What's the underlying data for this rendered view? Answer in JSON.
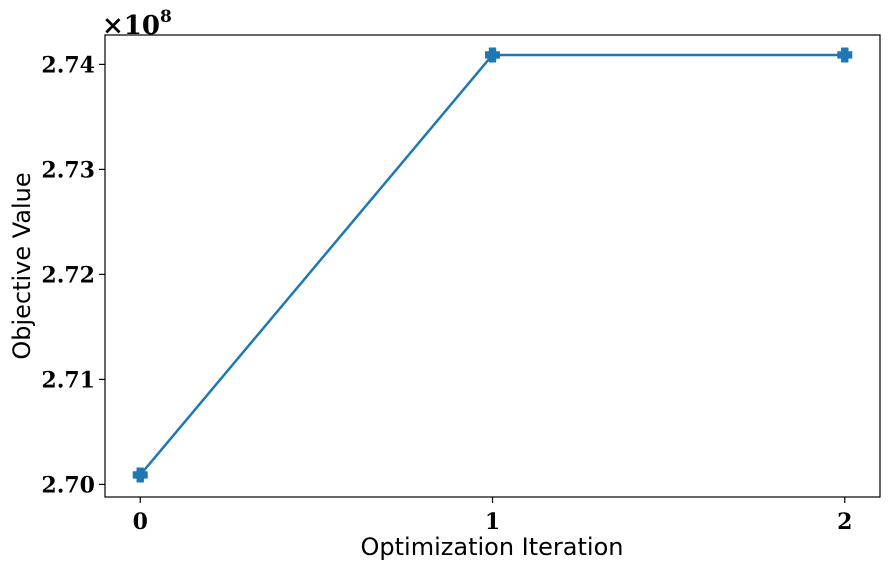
{
  "chart_data": {
    "type": "line",
    "title": "",
    "xlabel": "Optimization Iteration",
    "ylabel": "Objective Value",
    "x": [
      0,
      1,
      2
    ],
    "series": [
      {
        "values": [
          270090000,
          274090000,
          274090000
        ],
        "color": "#1f77b4",
        "marker": "plus-filled"
      }
    ],
    "xticks": [
      0,
      1,
      2
    ],
    "xtick_labels": [
      "0",
      "1",
      "2"
    ],
    "yticks": [
      270000000,
      271000000,
      272000000,
      273000000,
      274000000
    ],
    "ytick_labels": [
      "2.70",
      "2.71",
      "2.72",
      "2.73",
      "2.74"
    ],
    "y_offset_base": "×10",
    "y_offset_exponent": "8",
    "xlim": [
      -0.1,
      2.1
    ],
    "ylim": [
      269880000,
      274280000
    ],
    "grid": false,
    "legend": "none"
  }
}
